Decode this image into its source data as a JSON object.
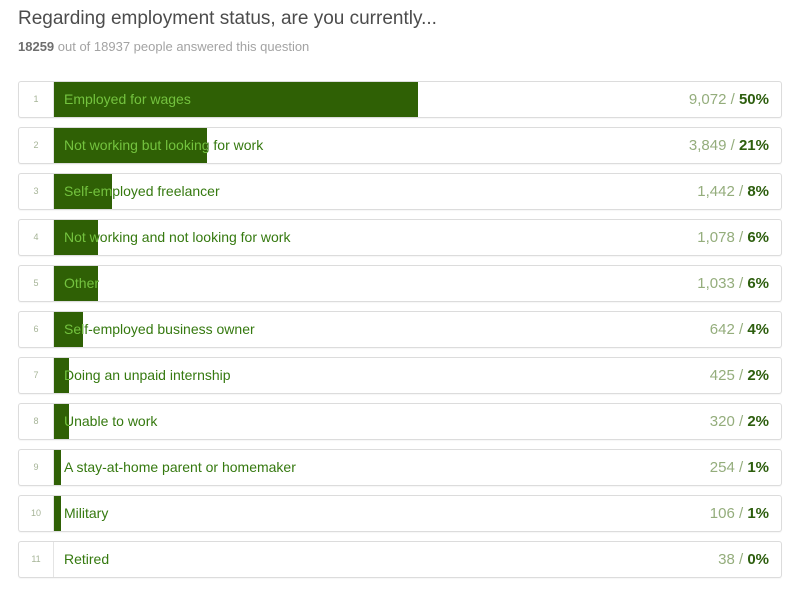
{
  "header": {
    "title": "Regarding employment status, are you currently...",
    "answered_count": "18259",
    "answered_suffix": " out of 18937 people answered this question"
  },
  "rows": [
    {
      "rank": "1",
      "label": "Employed for wages",
      "count": "9,072",
      "separator": "/",
      "percent_display": "50%",
      "percent": 50
    },
    {
      "rank": "2",
      "label": "Not working but looking for work",
      "count": "3,849",
      "separator": "/",
      "percent_display": "21%",
      "percent": 21
    },
    {
      "rank": "3",
      "label": "Self-employed freelancer",
      "count": "1,442",
      "separator": "/",
      "percent_display": "8%",
      "percent": 8
    },
    {
      "rank": "4",
      "label": "Not working and not looking for work",
      "count": "1,078",
      "separator": "/",
      "percent_display": "6%",
      "percent": 6
    },
    {
      "rank": "5",
      "label": "Other",
      "count": "1,033",
      "separator": "/",
      "percent_display": "6%",
      "percent": 6
    },
    {
      "rank": "6",
      "label": "Self-employed business owner",
      "count": "642",
      "separator": "/",
      "percent_display": "4%",
      "percent": 4
    },
    {
      "rank": "7",
      "label": "Doing an unpaid internship",
      "count": "425",
      "separator": "/",
      "percent_display": "2%",
      "percent": 2
    },
    {
      "rank": "8",
      "label": "Unable to work",
      "count": "320",
      "separator": "/",
      "percent_display": "2%",
      "percent": 2
    },
    {
      "rank": "9",
      "label": "A stay-at-home parent or homemaker",
      "count": "254",
      "separator": "/",
      "percent_display": "1%",
      "percent": 1
    },
    {
      "rank": "10",
      "label": "Military",
      "count": "106",
      "separator": "/",
      "percent_display": "1%",
      "percent": 1
    },
    {
      "rank": "11",
      "label": "Retired",
      "count": "38",
      "separator": "/",
      "percent_display": "0%",
      "percent": 0
    }
  ],
  "chart_data": {
    "type": "bar",
    "orientation": "horizontal",
    "title": "Regarding employment status, are you currently...",
    "categories": [
      "Employed for wages",
      "Not working but looking for work",
      "Self-employed freelancer",
      "Not working and not looking for work",
      "Other",
      "Self-employed business owner",
      "Doing an unpaid internship",
      "Unable to work",
      "A stay-at-home parent or homemaker",
      "Military",
      "Retired"
    ],
    "values": [
      9072,
      3849,
      1442,
      1078,
      1033,
      642,
      425,
      320,
      254,
      106,
      38
    ],
    "percents": [
      50,
      21,
      8,
      6,
      6,
      4,
      2,
      2,
      1,
      1,
      0
    ],
    "total_answered": 18259,
    "total_people": 18937,
    "xlabel": "",
    "ylabel": "",
    "grid": false,
    "legend": false
  },
  "colors": {
    "bar": "#2f6005",
    "label_on_bar": "#74c33f",
    "label_off_bar": "#35790f",
    "count_text": "#94ad7c",
    "percent_text": "#2d5e0e",
    "row_border": "#dcdcdc",
    "rank_text": "#a6b497",
    "title_text": "#4c4c4c",
    "subtitle_text": "#a3a3a3",
    "subtitle_bold_text": "#6e6e6e"
  }
}
